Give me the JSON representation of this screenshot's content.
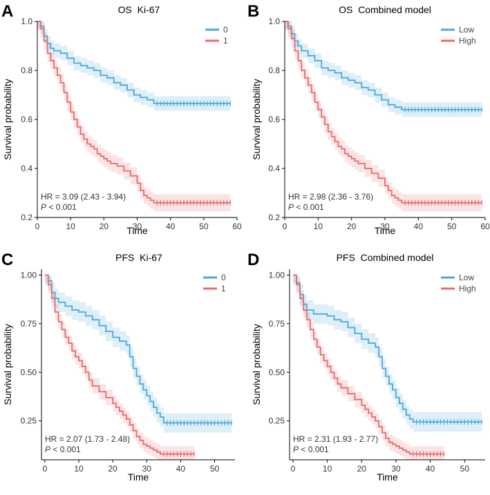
{
  "chart_data": [
    {
      "type": "line",
      "panel_label": "A",
      "title": "OS  Ki-67",
      "xlabel": "Time",
      "ylabel": "Survival probability",
      "xlim": [
        0,
        60
      ],
      "ylim": [
        0.2,
        1.0
      ],
      "xticks": [
        0,
        10,
        20,
        30,
        40,
        50,
        60
      ],
      "yticks": [
        0.2,
        0.4,
        0.6,
        0.8,
        1.0
      ],
      "ytick_labels": [
        "0.2",
        "0.4",
        "0.6",
        "0.8",
        "1.0"
      ],
      "legend_position": "top-right",
      "hr_text": "HR = 3.09 (2.43 - 3.94)",
      "p_label": "P",
      "p_value": " < 0.001",
      "series": [
        {
          "name": "0",
          "color": "#4aa8d8",
          "x": [
            0,
            1,
            2,
            3,
            4,
            5,
            7,
            9,
            11,
            13,
            15,
            17,
            19,
            21,
            23,
            25,
            27,
            29,
            31,
            33,
            35,
            58
          ],
          "y": [
            1.0,
            0.98,
            0.94,
            0.91,
            0.89,
            0.88,
            0.87,
            0.85,
            0.83,
            0.82,
            0.81,
            0.8,
            0.78,
            0.77,
            0.75,
            0.74,
            0.72,
            0.7,
            0.69,
            0.68,
            0.665,
            0.665
          ],
          "ci": 0.03,
          "censor_x": [
            36,
            37,
            38,
            39,
            40,
            41,
            42,
            43,
            44,
            45,
            46,
            47,
            48,
            49,
            50,
            51,
            52,
            53,
            54,
            55,
            56,
            57,
            58
          ]
        },
        {
          "name": "1",
          "color": "#e8696b",
          "x": [
            0,
            1,
            2,
            3,
            4,
            5,
            6,
            7,
            8,
            9,
            10,
            11,
            12,
            13,
            14,
            15,
            16,
            17,
            18,
            19,
            20,
            21,
            22,
            24,
            26,
            28,
            30,
            31,
            32,
            33,
            34,
            35,
            58
          ],
          "y": [
            1.0,
            0.97,
            0.92,
            0.87,
            0.84,
            0.81,
            0.78,
            0.75,
            0.71,
            0.67,
            0.63,
            0.6,
            0.57,
            0.54,
            0.52,
            0.5,
            0.49,
            0.48,
            0.46,
            0.45,
            0.44,
            0.43,
            0.42,
            0.41,
            0.39,
            0.37,
            0.34,
            0.31,
            0.29,
            0.28,
            0.27,
            0.26,
            0.26
          ],
          "ci": 0.035,
          "censor_x": [
            36,
            37,
            38,
            39,
            40,
            41,
            42,
            43,
            44,
            45,
            46,
            47,
            48,
            49,
            50,
            51,
            52,
            53,
            54,
            55,
            56,
            57,
            58
          ]
        }
      ]
    },
    {
      "type": "line",
      "panel_label": "B",
      "title": "OS  Combined model",
      "xlabel": "Time",
      "ylabel": "Survival probability",
      "xlim": [
        0,
        60
      ],
      "ylim": [
        0.2,
        1.0
      ],
      "xticks": [
        0,
        10,
        20,
        30,
        40,
        50,
        60
      ],
      "yticks": [
        0.2,
        0.4,
        0.6,
        0.8,
        1.0
      ],
      "ytick_labels": [
        "0.2",
        "0.4",
        "0.6",
        "0.8",
        "1.0"
      ],
      "legend_position": "top-right",
      "hr_text": "HR = 2.98 (2.36 - 3.76)",
      "p_label": "P",
      "p_value": " < 0.001",
      "series": [
        {
          "name": "Low",
          "color": "#4aa8d8",
          "x": [
            0,
            1,
            2,
            3,
            4,
            5,
            7,
            9,
            11,
            13,
            15,
            17,
            19,
            21,
            23,
            25,
            27,
            29,
            31,
            33,
            35,
            59
          ],
          "y": [
            1.0,
            0.98,
            0.95,
            0.92,
            0.9,
            0.88,
            0.86,
            0.84,
            0.81,
            0.8,
            0.79,
            0.77,
            0.76,
            0.75,
            0.73,
            0.72,
            0.7,
            0.68,
            0.66,
            0.65,
            0.64,
            0.64
          ],
          "ci": 0.03,
          "censor_x": [
            36,
            37,
            38,
            39,
            40,
            41,
            42,
            43,
            44,
            45,
            46,
            47,
            48,
            49,
            50,
            51,
            52,
            53,
            54,
            55,
            56,
            57,
            58,
            59
          ]
        },
        {
          "name": "High",
          "color": "#e8696b",
          "x": [
            0,
            1,
            2,
            3,
            4,
            5,
            6,
            7,
            8,
            9,
            10,
            11,
            12,
            13,
            14,
            15,
            16,
            17,
            18,
            19,
            20,
            21,
            22,
            24,
            26,
            28,
            30,
            31,
            32,
            33,
            34,
            35,
            59
          ],
          "y": [
            1.0,
            0.97,
            0.93,
            0.88,
            0.84,
            0.8,
            0.77,
            0.74,
            0.71,
            0.67,
            0.64,
            0.61,
            0.58,
            0.55,
            0.53,
            0.51,
            0.49,
            0.48,
            0.46,
            0.45,
            0.44,
            0.43,
            0.42,
            0.4,
            0.38,
            0.36,
            0.33,
            0.31,
            0.29,
            0.28,
            0.27,
            0.26,
            0.26
          ],
          "ci": 0.035,
          "censor_x": [
            36,
            37,
            38,
            39,
            40,
            41,
            42,
            43,
            44,
            45,
            46,
            47,
            48,
            49,
            50,
            51,
            52,
            53,
            54,
            55,
            56,
            57,
            58,
            59
          ]
        }
      ]
    },
    {
      "type": "line",
      "panel_label": "C",
      "title": "PFS  Ki-67",
      "xlabel": "Time",
      "ylabel": "Survival probability",
      "xlim": [
        -1,
        56
      ],
      "ylim": [
        0.05,
        1.03
      ],
      "xticks": [
        0,
        10,
        20,
        30,
        40,
        50
      ],
      "yticks": [
        0.25,
        0.5,
        0.75,
        1.0
      ],
      "ytick_labels": [
        "0.25",
        "0.50",
        "0.75",
        "1.00"
      ],
      "legend_position": "top-right",
      "hr_text": "HR = 2.07 (1.73 - 2.48)",
      "p_label": "P",
      "p_value": " < 0.001",
      "series": [
        {
          "name": "0",
          "color": "#4aa8d8",
          "x": [
            0,
            1,
            2,
            3,
            4,
            6,
            8,
            10,
            12,
            14,
            16,
            18,
            20,
            22,
            24,
            25,
            26,
            27,
            28,
            29,
            30,
            31,
            32,
            33,
            34,
            35,
            55
          ],
          "y": [
            1.0,
            0.97,
            0.91,
            0.88,
            0.86,
            0.84,
            0.82,
            0.81,
            0.79,
            0.77,
            0.74,
            0.71,
            0.68,
            0.66,
            0.64,
            0.58,
            0.52,
            0.48,
            0.44,
            0.41,
            0.38,
            0.35,
            0.32,
            0.29,
            0.27,
            0.24,
            0.24
          ],
          "ci": 0.05,
          "censor_x": [
            36,
            37,
            38,
            39,
            40,
            41,
            42,
            43,
            44,
            45,
            46,
            47,
            48,
            49,
            50,
            51,
            52,
            53,
            54,
            55
          ]
        },
        {
          "name": "1",
          "color": "#e8696b",
          "x": [
            0,
            1,
            2,
            3,
            4,
            5,
            6,
            7,
            8,
            9,
            10,
            11,
            12,
            13,
            14,
            16,
            18,
            20,
            21,
            22,
            23,
            24,
            25,
            26,
            27,
            28,
            29,
            30,
            31,
            32,
            33,
            34,
            44
          ],
          "y": [
            1.0,
            0.95,
            0.88,
            0.81,
            0.76,
            0.72,
            0.68,
            0.65,
            0.61,
            0.58,
            0.56,
            0.53,
            0.5,
            0.46,
            0.43,
            0.4,
            0.37,
            0.34,
            0.32,
            0.3,
            0.28,
            0.26,
            0.23,
            0.2,
            0.17,
            0.15,
            0.13,
            0.12,
            0.11,
            0.1,
            0.09,
            0.08,
            0.08
          ],
          "ci": 0.04,
          "censor_x": [
            35,
            36,
            37,
            38,
            39,
            40,
            41,
            42,
            43,
            44
          ]
        }
      ]
    },
    {
      "type": "line",
      "panel_label": "D",
      "title": "PFS  Combined model",
      "xlabel": "Time",
      "ylabel": "Survival probability",
      "xlim": [
        -1,
        56
      ],
      "ylim": [
        0.05,
        1.03
      ],
      "xticks": [
        0,
        10,
        20,
        30,
        40,
        50
      ],
      "yticks": [
        0.25,
        0.5,
        0.75,
        1.0
      ],
      "ytick_labels": [
        "0.25",
        "0.50",
        "0.75",
        "1.00"
      ],
      "legend_position": "top-right",
      "hr_text": "HR = 2.31 (1.93 - 2.77)",
      "p_label": "P",
      "p_value": " < 0.001",
      "series": [
        {
          "name": "Low",
          "color": "#4aa8d8",
          "x": [
            0,
            1,
            2,
            3,
            4,
            6,
            8,
            10,
            12,
            14,
            16,
            18,
            20,
            22,
            24,
            25,
            26,
            27,
            28,
            29,
            30,
            31,
            32,
            33,
            34,
            35,
            55
          ],
          "y": [
            1.0,
            0.96,
            0.9,
            0.85,
            0.82,
            0.8,
            0.8,
            0.79,
            0.77,
            0.76,
            0.73,
            0.7,
            0.67,
            0.65,
            0.63,
            0.58,
            0.52,
            0.48,
            0.44,
            0.41,
            0.37,
            0.34,
            0.31,
            0.28,
            0.26,
            0.245,
            0.245
          ],
          "ci": 0.05,
          "censor_x": [
            36,
            37,
            38,
            39,
            40,
            41,
            42,
            43,
            44,
            45,
            46,
            47,
            48,
            49,
            50,
            51,
            52,
            53,
            54,
            55
          ]
        },
        {
          "name": "High",
          "color": "#e8696b",
          "x": [
            0,
            1,
            2,
            3,
            4,
            5,
            6,
            7,
            8,
            9,
            10,
            11,
            12,
            13,
            14,
            16,
            18,
            20,
            21,
            22,
            23,
            24,
            25,
            26,
            27,
            28,
            29,
            30,
            31,
            32,
            33,
            34,
            44
          ],
          "y": [
            1.0,
            0.95,
            0.88,
            0.82,
            0.77,
            0.72,
            0.67,
            0.63,
            0.59,
            0.56,
            0.53,
            0.5,
            0.47,
            0.44,
            0.42,
            0.39,
            0.36,
            0.33,
            0.31,
            0.29,
            0.27,
            0.25,
            0.22,
            0.19,
            0.16,
            0.14,
            0.13,
            0.12,
            0.11,
            0.1,
            0.09,
            0.08,
            0.08
          ],
          "ci": 0.04,
          "censor_x": [
            35,
            36,
            37,
            38,
            39,
            40,
            41,
            42,
            43,
            44
          ]
        }
      ]
    }
  ]
}
